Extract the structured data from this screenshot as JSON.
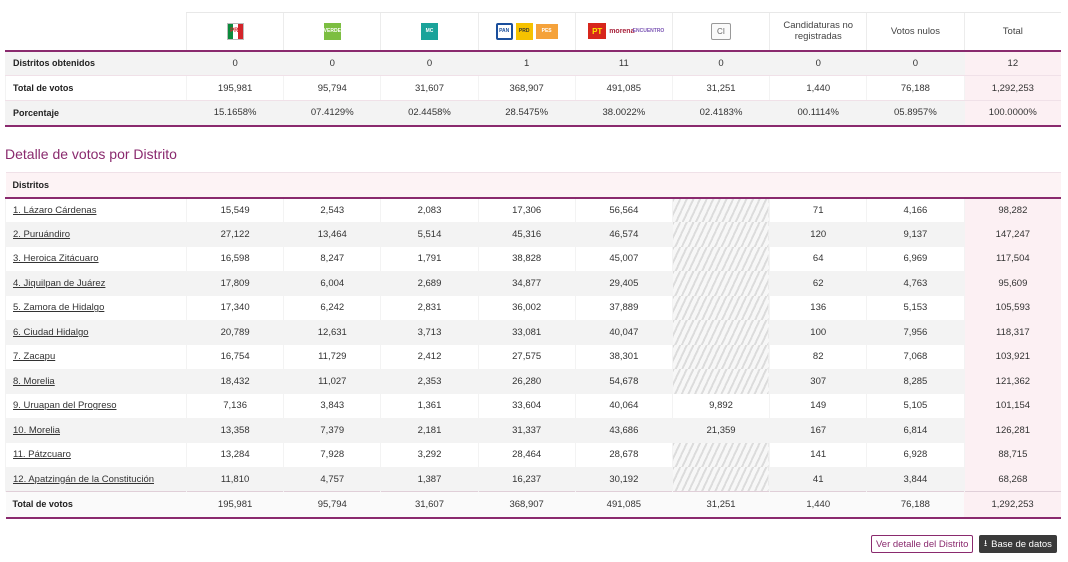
{
  "columns": {
    "candidaturas_no_registradas": "Candidaturas no registradas",
    "votos_nulos": "Votos nulos",
    "total": "Total"
  },
  "logos": {
    "pri": "PRI",
    "pvem": "VERDE",
    "mc": "MC",
    "pan": "PAN",
    "prd": "PRD",
    "pes": "PES",
    "pt": "PT",
    "morena": "morena",
    "encuentro": "ENCUENTRO",
    "ci": "CI"
  },
  "summary": {
    "rows": [
      {
        "label": "Distritos obtenidos",
        "values": [
          "0",
          "0",
          "0",
          "1",
          "11",
          "0",
          "0",
          "0",
          "12"
        ]
      },
      {
        "label": "Total de votos",
        "values": [
          "195,981",
          "95,794",
          "31,607",
          "368,907",
          "491,085",
          "31,251",
          "1,440",
          "76,188",
          "1,292,253"
        ]
      },
      {
        "label": "Porcentaje",
        "values": [
          "15.1658%",
          "07.4129%",
          "02.4458%",
          "28.5475%",
          "38.0022%",
          "02.4183%",
          "00.1114%",
          "05.8957%",
          "100.0000%"
        ]
      }
    ]
  },
  "section_title": "Detalle de votos por Distrito",
  "detail": {
    "header_label": "Distritos",
    "rows": [
      {
        "name": "1. Lázaro Cárdenas",
        "values": [
          "15,549",
          "2,543",
          "2,083",
          "17,306",
          "56,564",
          "",
          "71",
          "4,166",
          "98,282"
        ],
        "ci_hatched": true
      },
      {
        "name": "2. Puruándiro",
        "values": [
          "27,122",
          "13,464",
          "5,514",
          "45,316",
          "46,574",
          "",
          "120",
          "9,137",
          "147,247"
        ],
        "ci_hatched": true
      },
      {
        "name": "3. Heroica Zitácuaro",
        "values": [
          "16,598",
          "8,247",
          "1,791",
          "38,828",
          "45,007",
          "",
          "64",
          "6,969",
          "117,504"
        ],
        "ci_hatched": true
      },
      {
        "name": "4. Jiquilpan de Juárez",
        "values": [
          "17,809",
          "6,004",
          "2,689",
          "34,877",
          "29,405",
          "",
          "62",
          "4,763",
          "95,609"
        ],
        "ci_hatched": true
      },
      {
        "name": "5. Zamora de Hidalgo",
        "values": [
          "17,340",
          "6,242",
          "2,831",
          "36,002",
          "37,889",
          "",
          "136",
          "5,153",
          "105,593"
        ],
        "ci_hatched": true
      },
      {
        "name": "6. Ciudad Hidalgo",
        "values": [
          "20,789",
          "12,631",
          "3,713",
          "33,081",
          "40,047",
          "",
          "100",
          "7,956",
          "118,317"
        ],
        "ci_hatched": true
      },
      {
        "name": "7. Zacapu",
        "values": [
          "16,754",
          "11,729",
          "2,412",
          "27,575",
          "38,301",
          "",
          "82",
          "7,068",
          "103,921"
        ],
        "ci_hatched": true
      },
      {
        "name": "8. Morelia",
        "values": [
          "18,432",
          "11,027",
          "2,353",
          "26,280",
          "54,678",
          "",
          "307",
          "8,285",
          "121,362"
        ],
        "ci_hatched": true
      },
      {
        "name": "9. Uruapan del Progreso",
        "values": [
          "7,136",
          "3,843",
          "1,361",
          "33,604",
          "40,064",
          "9,892",
          "149",
          "5,105",
          "101,154"
        ],
        "ci_hatched": false
      },
      {
        "name": "10. Morelia",
        "values": [
          "13,358",
          "7,379",
          "2,181",
          "31,337",
          "43,686",
          "21,359",
          "167",
          "6,814",
          "126,281"
        ],
        "ci_hatched": false
      },
      {
        "name": "11. Pátzcuaro",
        "values": [
          "13,284",
          "7,928",
          "3,292",
          "28,464",
          "28,678",
          "",
          "141",
          "6,928",
          "88,715"
        ],
        "ci_hatched": true
      },
      {
        "name": "12. Apatzingán de la Constitución",
        "values": [
          "11,810",
          "4,757",
          "1,387",
          "16,237",
          "30,192",
          "",
          "41",
          "3,844",
          "68,268"
        ],
        "ci_hatched": true
      }
    ],
    "total": {
      "label": "Total de votos",
      "values": [
        "195,981",
        "95,794",
        "31,607",
        "368,907",
        "491,085",
        "31,251",
        "1,440",
        "76,188",
        "1,292,253"
      ]
    }
  },
  "buttons": {
    "ver_detalle": "Ver detalle del Distrito",
    "base_datos": "Base de datos"
  },
  "icons": {
    "download": "download-icon"
  },
  "colors": {
    "accent": "#8a2a6e",
    "button_dark": "#3a3a3a"
  }
}
